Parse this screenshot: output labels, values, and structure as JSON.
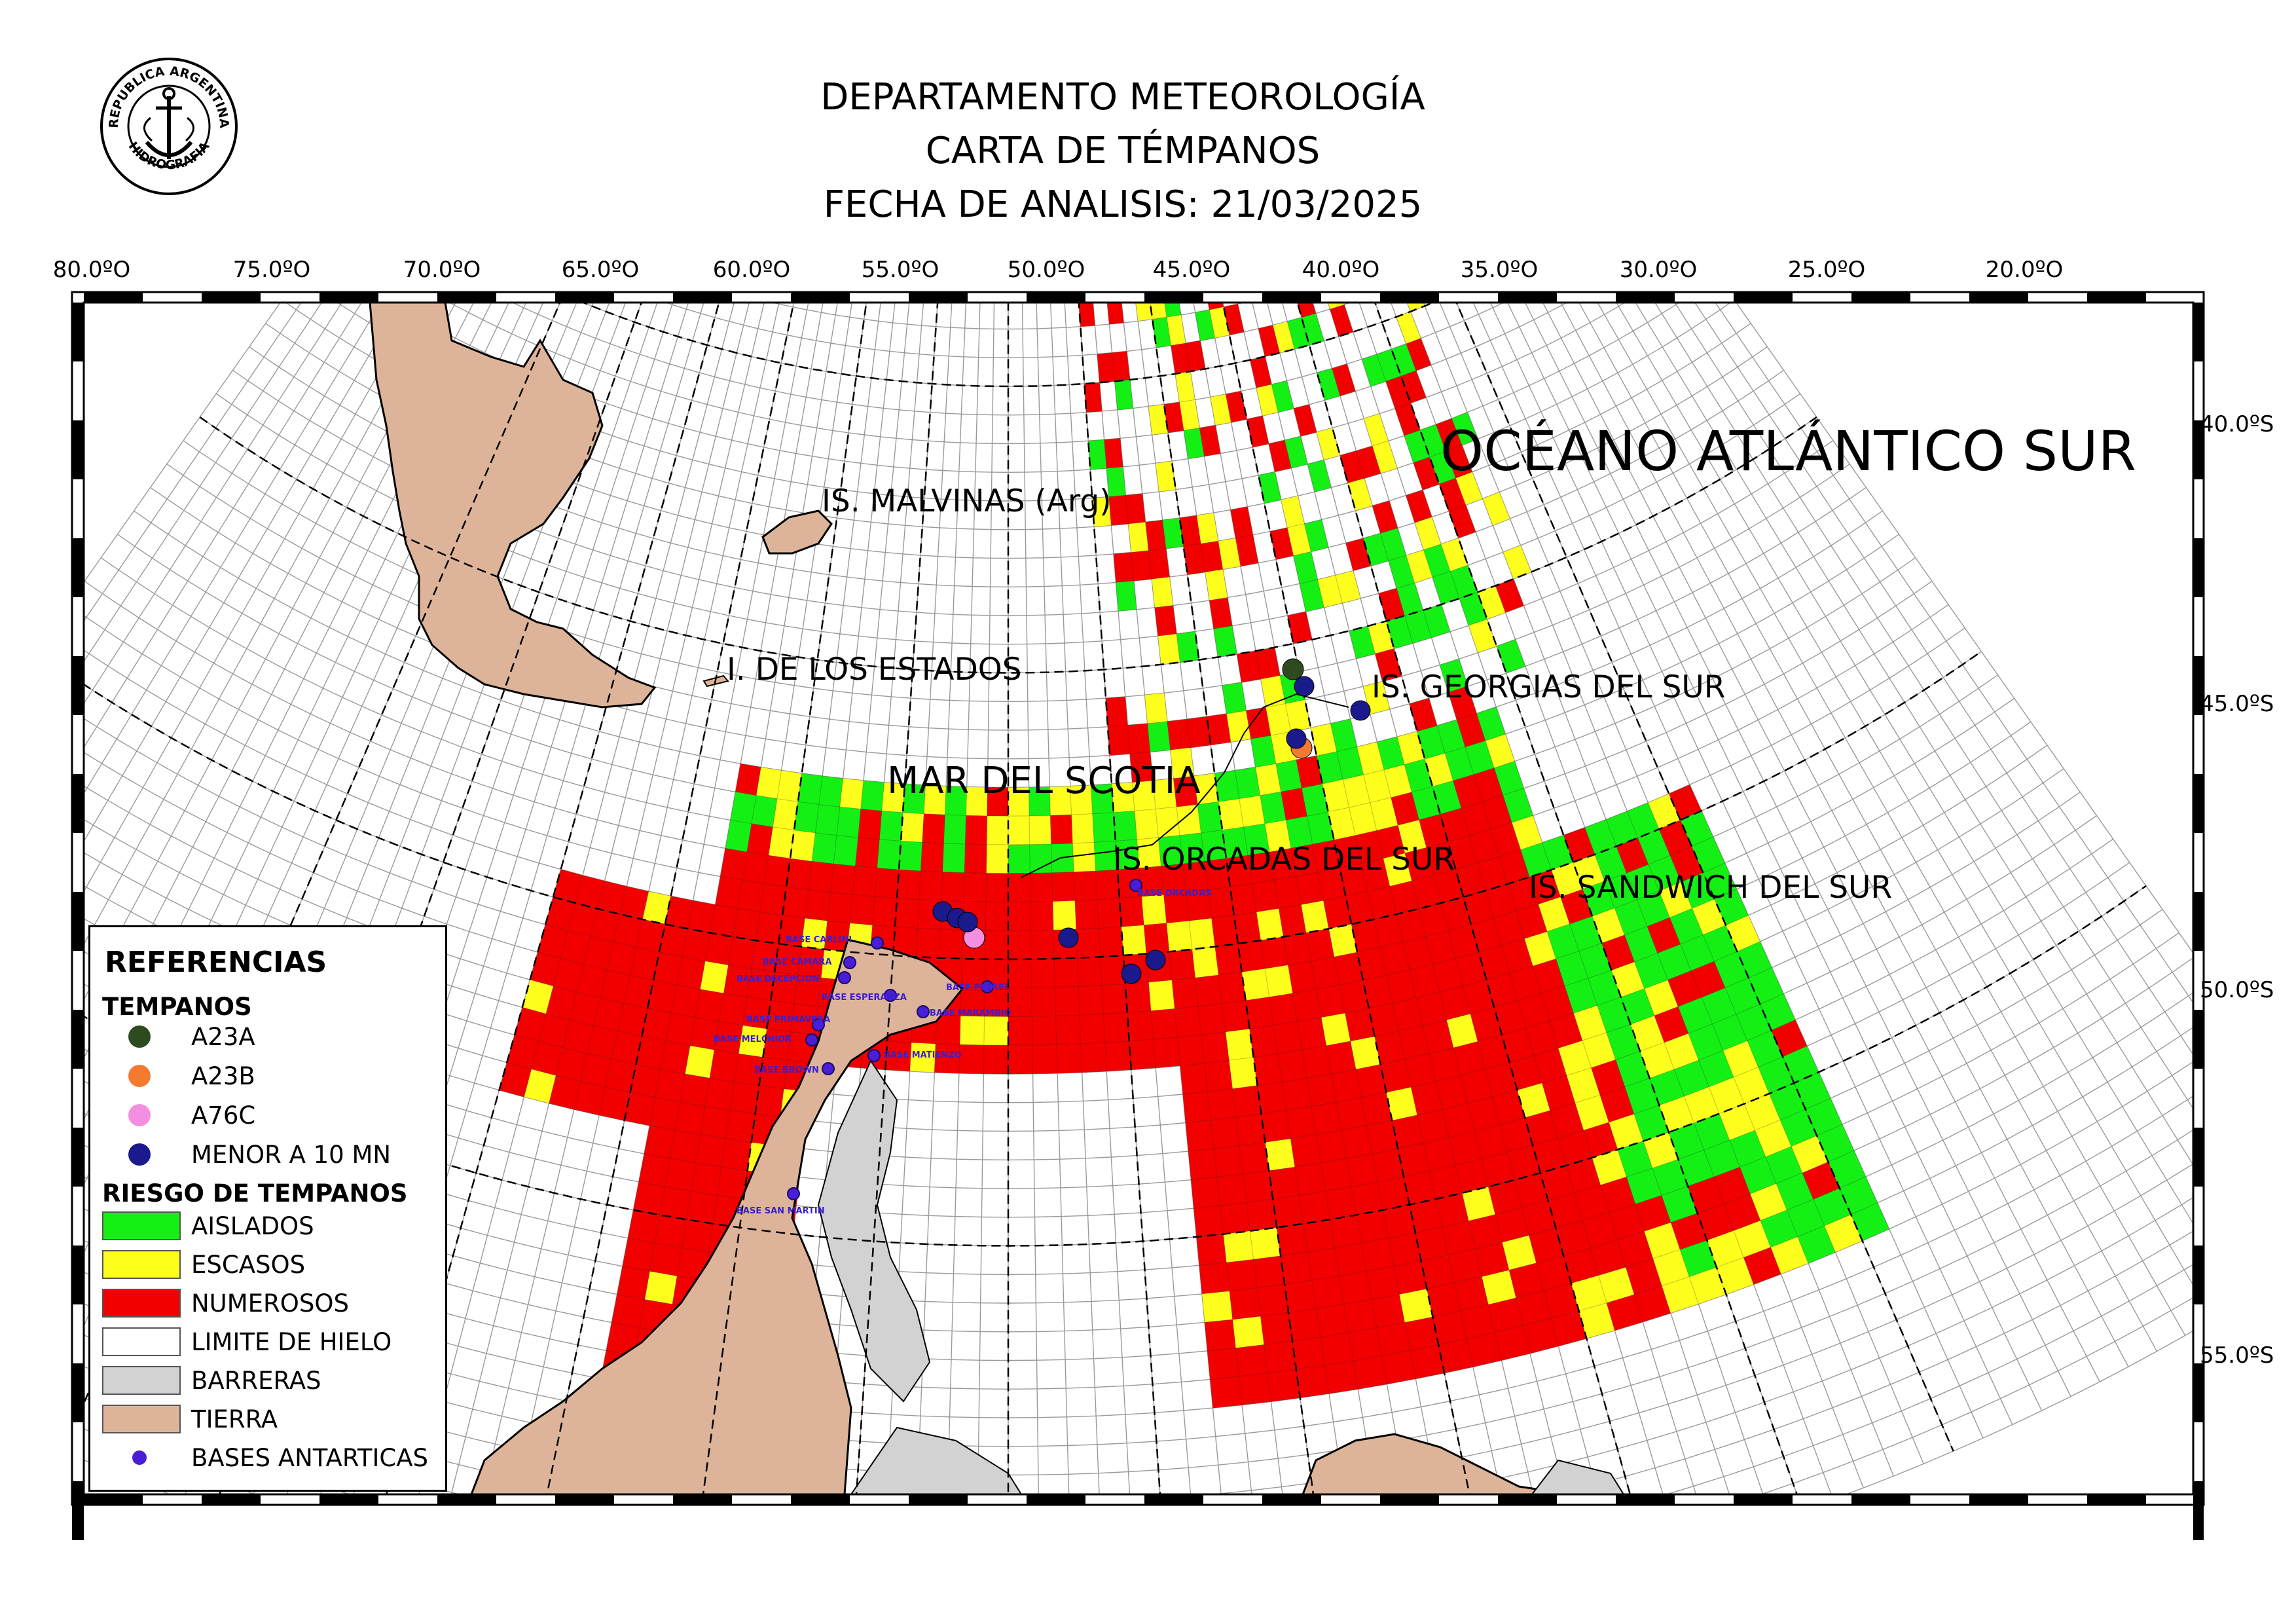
{
  "header": {
    "line1": "DEPARTAMENTO METEOROLOGÍA",
    "line2": "CARTA DE TÉMPANOS",
    "line3": "FECHA DE ANALISIS: 21/03/2025"
  },
  "seal": {
    "text_top": "REPUBLICA ARGENTINA",
    "text_bottom": "HIDROGRAFIA"
  },
  "axes": {
    "longitudes": [
      "80.0ºO",
      "75.0ºO",
      "70.0ºO",
      "65.0ºO",
      "60.0ºO",
      "55.0ºO",
      "50.0ºO",
      "45.0ºO",
      "40.0ºO",
      "35.0ºO",
      "30.0ºO",
      "25.0ºO",
      "20.0ºO"
    ],
    "latitudes": [
      "40.0ºS",
      "45.0ºS",
      "50.0ºS",
      "55.0ºS"
    ]
  },
  "places": {
    "ocean": "OCÉANO ATLÁNTICO SUR",
    "malvinas": "IS. MALVINAS (Arg)",
    "estados": "I. DE LOS ESTADOS",
    "scotia": "MAR DEL SCOTIA",
    "georgias": "IS. GEORGIAS DEL SUR",
    "orcadas": "IS. ORCADAS DEL SUR",
    "sandwich": "IS. SANDWICH DEL SUR"
  },
  "bases": {
    "carlini": "BASE CARLINI",
    "camara": "BASE CAMARA",
    "decepcion": "BASE DECEPCION",
    "esperanza": "BASE ESPERANZA",
    "petrel": "BASE PETREL",
    "primavera": "BASE PRIMAVERA",
    "marambio": "BASE MARAMBIO",
    "melchior": "BASE MELCHIOR",
    "matienzo": "BASE MATIENZO",
    "brown": "BASE BROWN",
    "san_martin": "BASE SAN MARTIN",
    "orcadas": "BASE ORCADAS"
  },
  "legend": {
    "title": "REFERENCIAS",
    "icebergs_heading": "TEMPANOS",
    "icebergs": [
      {
        "label": "A23A",
        "color": "#2e4a1f"
      },
      {
        "label": "A23B",
        "color": "#f47a30"
      },
      {
        "label": "A76C",
        "color": "#f48ee0"
      },
      {
        "label": "MENOR A 10 MN",
        "color": "#1a1a8c"
      }
    ],
    "risk_heading": "RIESGO DE TEMPANOS",
    "risk": [
      {
        "label": "AISLADOS",
        "color": "#14f014"
      },
      {
        "label": "ESCASOS",
        "color": "#ffff1e"
      },
      {
        "label": "NUMEROSOS",
        "color": "#f20000"
      },
      {
        "label": "LIMITE DE HIELO",
        "color": "#ffffff"
      },
      {
        "label": "BARRERAS",
        "color": "#d2d2d2"
      },
      {
        "label": "TIERRA",
        "color": "#ddb499"
      },
      {
        "label": "BASES ANTARTICAS",
        "color": "#4a1ed6"
      }
    ]
  }
}
